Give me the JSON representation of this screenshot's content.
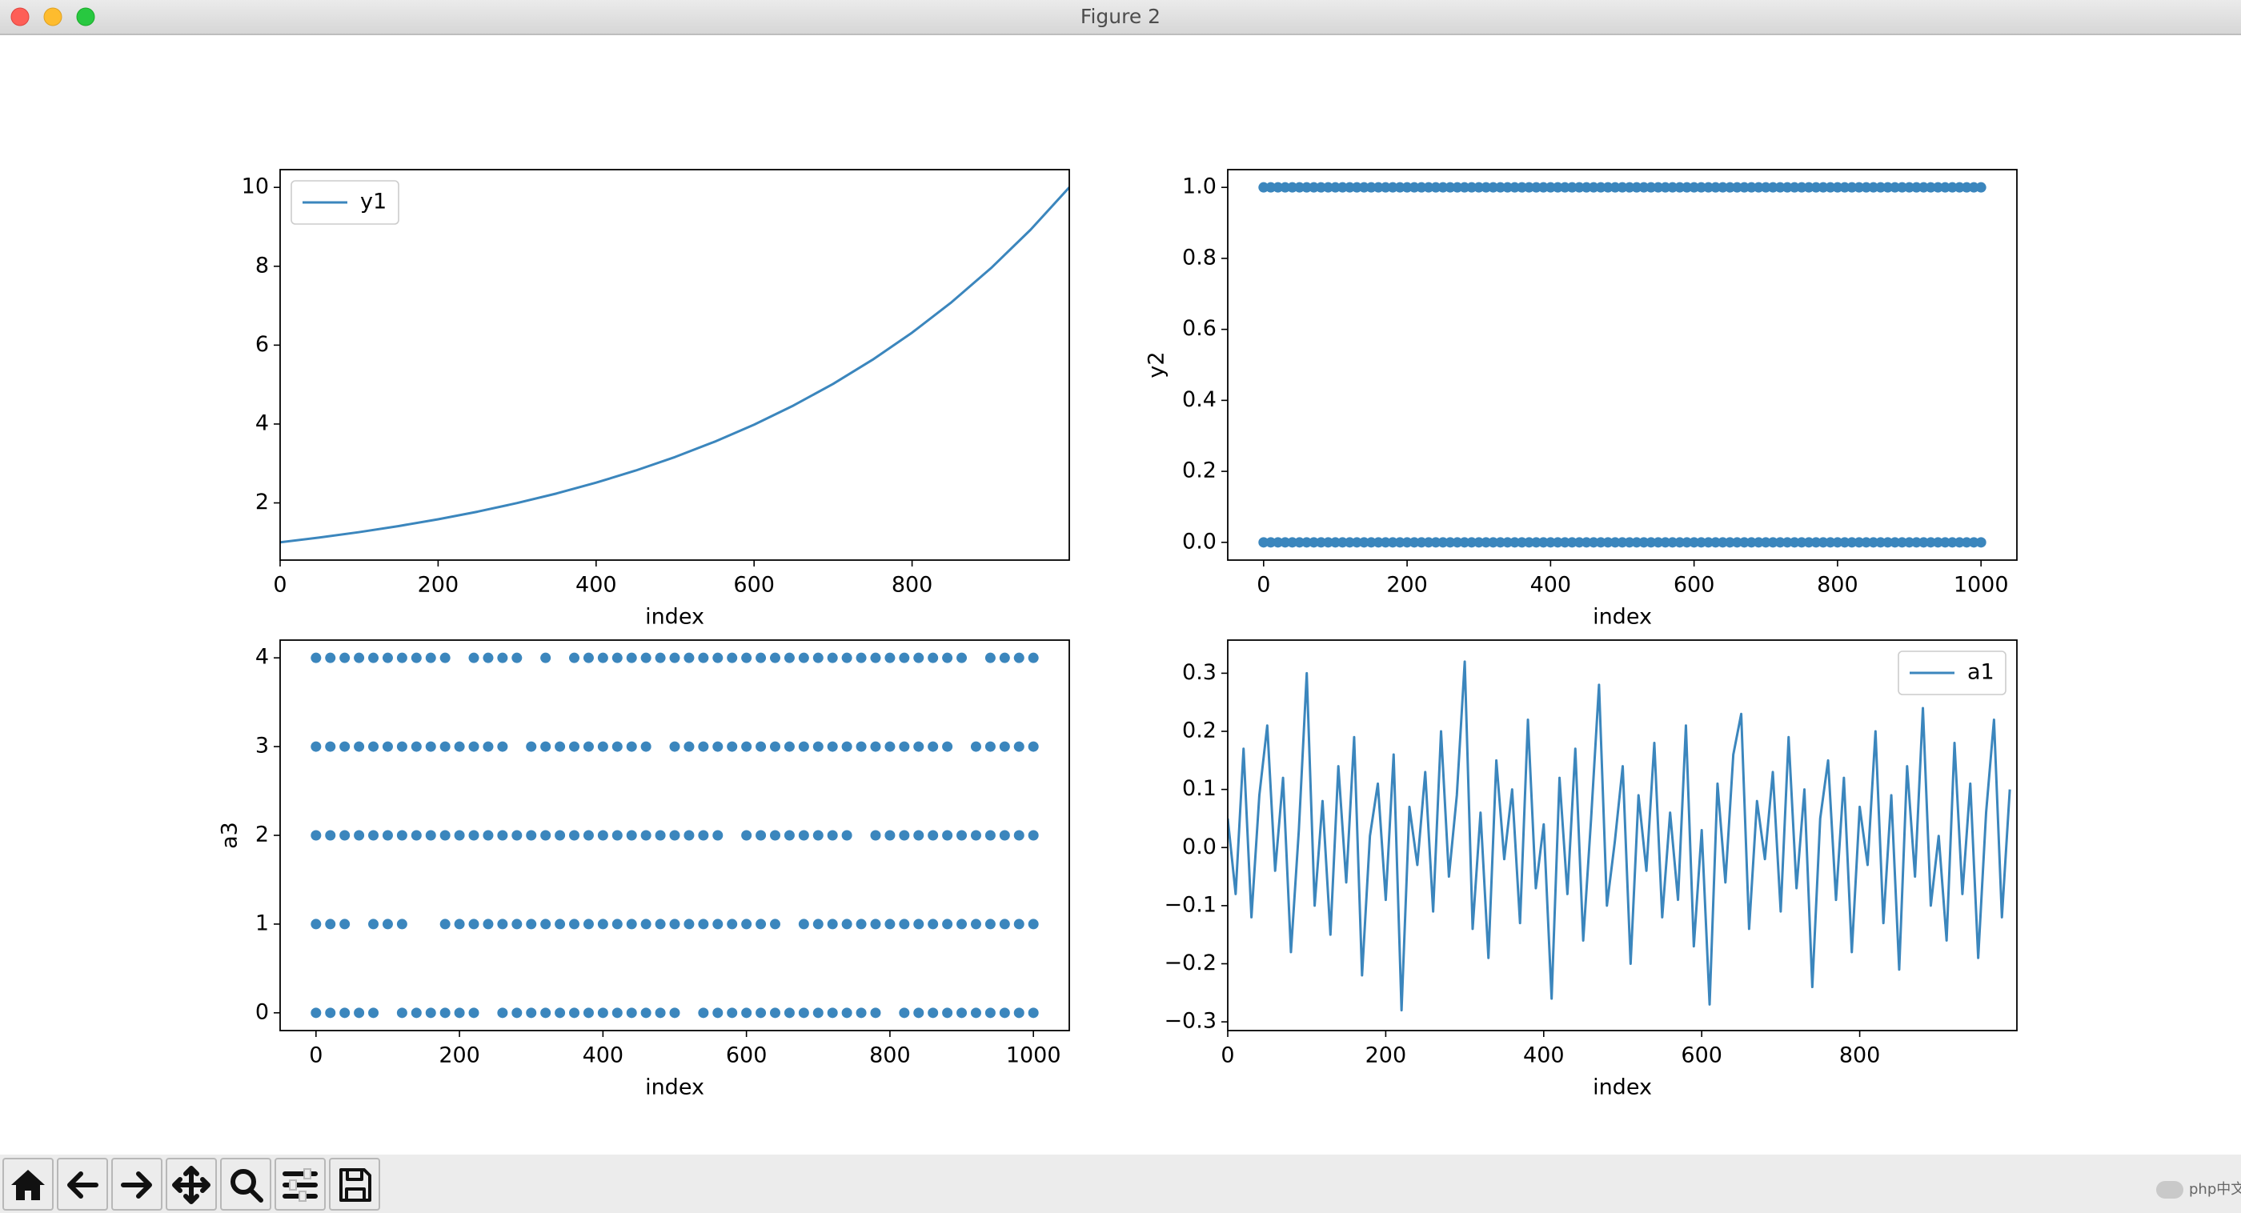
{
  "window": {
    "title": "Figure 2",
    "watermark": "php中文网"
  },
  "chart_data": [
    {
      "type": "line",
      "xlabel": "index",
      "x": [
        0,
        50,
        100,
        150,
        200,
        250,
        300,
        350,
        400,
        450,
        500,
        550,
        600,
        650,
        700,
        750,
        800,
        850,
        900,
        950,
        999
      ],
      "series": [
        {
          "name": "y1",
          "color": "#3b86bd",
          "values": [
            1.0,
            1.122,
            1.259,
            1.413,
            1.585,
            1.778,
            1.996,
            2.239,
            2.513,
            2.82,
            3.164,
            3.551,
            3.984,
            4.471,
            5.017,
            5.63,
            6.317,
            7.089,
            7.954,
            8.926,
            10.0
          ]
        }
      ],
      "xlim": [
        0,
        999
      ],
      "ylim": [
        0.55,
        10.45
      ],
      "xticks": [
        0,
        200,
        400,
        600,
        800
      ],
      "yticks": [
        2,
        4,
        6,
        8,
        10
      ],
      "legend": "upper left"
    },
    {
      "type": "scatter",
      "xlabel": "index",
      "ylabel": "y2",
      "x": [
        0,
        10,
        20,
        30,
        40,
        50,
        60,
        70,
        80,
        90,
        100,
        110,
        120,
        130,
        140,
        150,
        160,
        170,
        180,
        190,
        200,
        210,
        220,
        230,
        240,
        250,
        260,
        270,
        280,
        290,
        300,
        310,
        320,
        330,
        340,
        350,
        360,
        370,
        380,
        390,
        400,
        410,
        420,
        430,
        440,
        450,
        460,
        470,
        480,
        490,
        500,
        510,
        520,
        530,
        540,
        550,
        560,
        570,
        580,
        590,
        600,
        610,
        620,
        630,
        640,
        650,
        660,
        670,
        680,
        690,
        700,
        710,
        720,
        730,
        740,
        750,
        760,
        770,
        780,
        790,
        800,
        810,
        820,
        830,
        840,
        850,
        860,
        870,
        880,
        890,
        900,
        910,
        920,
        930,
        940,
        950,
        960,
        970,
        980,
        990,
        1000
      ],
      "series": [
        {
          "color": "#3b86bd",
          "values": [
            1,
            1,
            1,
            1,
            1,
            1,
            1,
            1,
            1,
            1,
            1,
            1,
            1,
            1,
            1,
            1,
            1,
            1,
            1,
            1,
            1,
            1,
            1,
            1,
            1,
            1,
            1,
            1,
            1,
            1,
            1,
            1,
            1,
            1,
            1,
            1,
            1,
            1,
            1,
            1,
            1,
            1,
            1,
            1,
            1,
            1,
            1,
            1,
            1,
            1,
            1,
            1,
            1,
            1,
            1,
            1,
            1,
            1,
            1,
            1,
            1,
            1,
            1,
            1,
            1,
            1,
            1,
            1,
            1,
            1,
            1,
            1,
            1,
            1,
            1,
            1,
            1,
            1,
            1,
            1,
            1,
            1,
            1,
            1,
            1,
            1,
            1,
            1,
            1,
            1,
            1,
            1,
            1,
            1,
            1,
            1,
            1,
            1,
            1,
            1,
            1
          ]
        },
        {
          "color": "#3b86bd",
          "values": [
            0,
            0,
            0,
            0,
            0,
            0,
            0,
            0,
            0,
            0,
            0,
            0,
            0,
            0,
            0,
            0,
            0,
            0,
            0,
            0,
            0,
            0,
            0,
            0,
            0,
            0,
            0,
            0,
            0,
            0,
            0,
            0,
            0,
            0,
            0,
            0,
            0,
            0,
            0,
            0,
            0,
            0,
            0,
            0,
            0,
            0,
            0,
            0,
            0,
            0,
            0,
            0,
            0,
            0,
            0,
            0,
            0,
            0,
            0,
            0,
            0,
            0,
            0,
            0,
            0,
            0,
            0,
            0,
            0,
            0,
            0,
            0,
            0,
            0,
            0,
            0,
            0,
            0,
            0,
            0,
            0,
            0,
            0,
            0,
            0,
            0,
            0,
            0,
            0,
            0,
            0,
            0,
            0,
            0,
            0,
            0,
            0,
            0,
            0,
            0,
            0
          ]
        }
      ],
      "xlim": [
        -50,
        1050
      ],
      "ylim": [
        -0.05,
        1.05
      ],
      "xticks": [
        0,
        200,
        400,
        600,
        800,
        1000
      ],
      "yticks": [
        {
          "value": 0,
          "label": "0.0"
        },
        {
          "value": 0.2,
          "label": "0.2"
        },
        {
          "value": 0.4,
          "label": "0.4"
        },
        {
          "value": 0.6,
          "label": "0.6"
        },
        {
          "value": 0.8,
          "label": "0.8"
        },
        {
          "value": 1,
          "label": "1.0"
        }
      ]
    },
    {
      "type": "scatter",
      "xlabel": "index",
      "ylabel": "a3",
      "x": [
        0,
        20,
        40,
        60,
        80,
        100,
        120,
        140,
        160,
        180,
        200,
        220,
        240,
        260,
        280,
        300,
        320,
        340,
        360,
        380,
        400,
        420,
        440,
        460,
        480,
        500,
        520,
        540,
        560,
        580,
        600,
        620,
        640,
        660,
        680,
        700,
        720,
        740,
        760,
        780,
        800,
        820,
        840,
        860,
        880,
        900,
        920,
        940,
        960,
        980,
        1000
      ],
      "series": [
        {
          "color": "#3b86bd",
          "values": [
            4,
            4,
            4,
            4,
            4,
            4,
            4,
            4,
            4,
            4,
            null,
            4,
            4,
            4,
            4,
            null,
            4,
            null,
            4,
            4,
            4,
            4,
            4,
            4,
            4,
            4,
            4,
            4,
            4,
            4,
            4,
            4,
            4,
            4,
            4,
            4,
            4,
            4,
            4,
            4,
            4,
            4,
            4,
            4,
            4,
            4,
            null,
            4,
            4,
            4,
            4
          ]
        },
        {
          "color": "#3b86bd",
          "values": [
            3,
            3,
            3,
            3,
            3,
            3,
            3,
            3,
            3,
            3,
            3,
            3,
            3,
            3,
            null,
            3,
            3,
            3,
            3,
            3,
            3,
            3,
            3,
            3,
            null,
            3,
            3,
            3,
            3,
            3,
            3,
            3,
            3,
            3,
            3,
            3,
            3,
            3,
            3,
            3,
            3,
            3,
            3,
            3,
            3,
            null,
            3,
            3,
            3,
            3,
            3
          ]
        },
        {
          "color": "#3b86bd",
          "values": [
            2,
            2,
            2,
            2,
            2,
            2,
            2,
            2,
            2,
            2,
            2,
            2,
            2,
            2,
            2,
            2,
            2,
            2,
            2,
            2,
            2,
            2,
            2,
            2,
            2,
            2,
            2,
            2,
            2,
            null,
            2,
            2,
            2,
            2,
            2,
            2,
            2,
            2,
            null,
            2,
            2,
            2,
            2,
            2,
            2,
            2,
            2,
            2,
            2,
            2,
            2
          ]
        },
        {
          "color": "#3b86bd",
          "values": [
            1,
            1,
            1,
            null,
            1,
            1,
            1,
            null,
            null,
            1,
            1,
            1,
            1,
            1,
            1,
            1,
            1,
            1,
            1,
            1,
            1,
            1,
            1,
            1,
            1,
            1,
            1,
            1,
            1,
            1,
            1,
            1,
            1,
            null,
            1,
            1,
            1,
            1,
            1,
            1,
            1,
            1,
            1,
            1,
            1,
            1,
            1,
            1,
            1,
            1,
            1
          ]
        },
        {
          "color": "#3b86bd",
          "values": [
            0,
            0,
            0,
            0,
            0,
            null,
            0,
            0,
            0,
            0,
            0,
            0,
            null,
            0,
            0,
            0,
            0,
            0,
            0,
            0,
            0,
            0,
            0,
            0,
            0,
            0,
            null,
            0,
            0,
            0,
            0,
            0,
            0,
            0,
            0,
            0,
            0,
            0,
            0,
            0,
            null,
            0,
            0,
            0,
            0,
            0,
            0,
            0,
            0,
            0,
            0
          ]
        }
      ],
      "xlim": [
        -50,
        1050
      ],
      "ylim": [
        -0.2,
        4.2
      ],
      "xticks": [
        0,
        200,
        400,
        600,
        800,
        1000
      ],
      "yticks": [
        0,
        1,
        2,
        3,
        4
      ]
    },
    {
      "type": "line",
      "xlabel": "index",
      "x": [
        0,
        10,
        20,
        30,
        40,
        50,
        60,
        70,
        80,
        90,
        100,
        110,
        120,
        130,
        140,
        150,
        160,
        170,
        180,
        190,
        200,
        210,
        220,
        230,
        240,
        250,
        260,
        270,
        280,
        290,
        300,
        310,
        320,
        330,
        340,
        350,
        360,
        370,
        380,
        390,
        400,
        410,
        420,
        430,
        440,
        450,
        460,
        470,
        480,
        490,
        500,
        510,
        520,
        530,
        540,
        550,
        560,
        570,
        580,
        590,
        600,
        610,
        620,
        630,
        640,
        650,
        660,
        670,
        680,
        690,
        700,
        710,
        720,
        730,
        740,
        750,
        760,
        770,
        780,
        790,
        800,
        810,
        820,
        830,
        840,
        850,
        860,
        870,
        880,
        890,
        900,
        910,
        920,
        930,
        940,
        950,
        960,
        970,
        980,
        990
      ],
      "series": [
        {
          "name": "a1",
          "color": "#3b86bd",
          "values": [
            0.05,
            -0.08,
            0.17,
            -0.12,
            0.09,
            0.21,
            -0.04,
            0.12,
            -0.18,
            0.03,
            0.3,
            -0.1,
            0.08,
            -0.15,
            0.14,
            -0.06,
            0.19,
            -0.22,
            0.02,
            0.11,
            -0.09,
            0.16,
            -0.28,
            0.07,
            -0.03,
            0.13,
            -0.11,
            0.2,
            -0.05,
            0.09,
            0.32,
            -0.14,
            0.06,
            -0.19,
            0.15,
            -0.02,
            0.1,
            -0.13,
            0.22,
            -0.07,
            0.04,
            -0.26,
            0.12,
            -0.08,
            0.17,
            -0.16,
            0.05,
            0.28,
            -0.1,
            0.01,
            0.14,
            -0.2,
            0.09,
            -0.04,
            0.18,
            -0.12,
            0.06,
            -0.09,
            0.21,
            -0.17,
            0.03,
            -0.27,
            0.11,
            -0.06,
            0.16,
            0.23,
            -0.14,
            0.08,
            -0.02,
            0.13,
            -0.11,
            0.19,
            -0.07,
            0.1,
            -0.24,
            0.05,
            0.15,
            -0.09,
            0.12,
            -0.18,
            0.07,
            -0.03,
            0.2,
            -0.13,
            0.09,
            -0.21,
            0.14,
            -0.05,
            0.24,
            -0.1,
            0.02,
            -0.16,
            0.18,
            -0.08,
            0.11,
            -0.19,
            0.06,
            0.22,
            -0.12,
            0.1
          ]
        }
      ],
      "xlim": [
        0,
        999
      ],
      "ylim": [
        -0.315,
        0.357
      ],
      "xticks": [
        0,
        200,
        400,
        600,
        800
      ],
      "yticks": [
        {
          "value": -0.3,
          "label": "−0.3"
        },
        {
          "value": -0.2,
          "label": "−0.2"
        },
        {
          "value": -0.1,
          "label": "−0.1"
        },
        {
          "value": 0,
          "label": "0.0"
        },
        {
          "value": 0.1,
          "label": "0.1"
        },
        {
          "value": 0.2,
          "label": "0.2"
        },
        {
          "value": 0.3,
          "label": "0.3"
        }
      ],
      "legend": "upper right"
    }
  ]
}
